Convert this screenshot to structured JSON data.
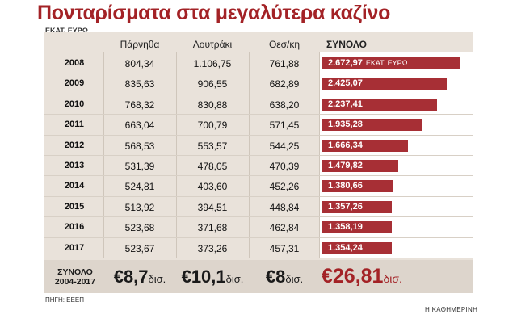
{
  "title": "Πονταρίσματα στα μεγαλύτερα καζίνο",
  "unit_label": "ΕΚΑΤ. ΕΥΡΩ",
  "columns": [
    "Πάρνηθα",
    "Λουτράκι",
    "Θεσ/κη",
    "ΣΥΝΟΛΟ"
  ],
  "total_unit": "ΕΚΑΤ. ΕΥΡΩ",
  "rows": [
    {
      "year": "2008",
      "parnitha": "804,34",
      "loutraki": "1.106,75",
      "thess": "761,88",
      "total": "2.672,97"
    },
    {
      "year": "2009",
      "parnitha": "835,63",
      "loutraki": "906,55",
      "thess": "682,89",
      "total": "2.425,07"
    },
    {
      "year": "2010",
      "parnitha": "768,32",
      "loutraki": "830,88",
      "thess": "638,20",
      "total": "2.237,41"
    },
    {
      "year": "2011",
      "parnitha": "663,04",
      "loutraki": "700,79",
      "thess": "571,45",
      "total": "1.935,28"
    },
    {
      "year": "2012",
      "parnitha": "568,53",
      "loutraki": "553,57",
      "thess": "544,25",
      "total": "1.666,34"
    },
    {
      "year": "2013",
      "parnitha": "531,39",
      "loutraki": "478,05",
      "thess": "470,39",
      "total": "1.479,82"
    },
    {
      "year": "2014",
      "parnitha": "524,81",
      "loutraki": "403,60",
      "thess": "452,26",
      "total": "1.380,66"
    },
    {
      "year": "2015",
      "parnitha": "513,92",
      "loutraki": "394,51",
      "thess": "448,84",
      "total": "1.357,26"
    },
    {
      "year": "2016",
      "parnitha": "523,68",
      "loutraki": "371,68",
      "thess": "462,84",
      "total": "1.358,19"
    },
    {
      "year": "2017",
      "parnitha": "523,67",
      "loutraki": "373,26",
      "thess": "457,31",
      "total": "1.354,24"
    }
  ],
  "summary": {
    "label_line1": "ΣΥΝΟΛΟ",
    "label_line2": "2004-2017",
    "parnitha": "€8,7",
    "loutraki": "€10,1",
    "thess": "€8",
    "total": "€26,81",
    "unit": "δισ."
  },
  "source": "ΠΗΓΗ: ΕΕΕΠ",
  "brand": "Η ΚΑΘΗΜΕΡΙΝΗ",
  "bar_color": "#a72f35",
  "title_color": "#a32226",
  "chart_data": {
    "type": "bar",
    "orientation": "horizontal",
    "categories": [
      "2008",
      "2009",
      "2010",
      "2011",
      "2012",
      "2013",
      "2014",
      "2015",
      "2016",
      "2017"
    ],
    "series": [
      {
        "name": "ΣΥΝΟΛΟ",
        "values": [
          2672.97,
          2425.07,
          2237.41,
          1935.28,
          1666.34,
          1479.82,
          1380.66,
          1357.26,
          1358.19,
          1354.24
        ]
      }
    ],
    "xlim": [
      0,
      2800
    ]
  }
}
